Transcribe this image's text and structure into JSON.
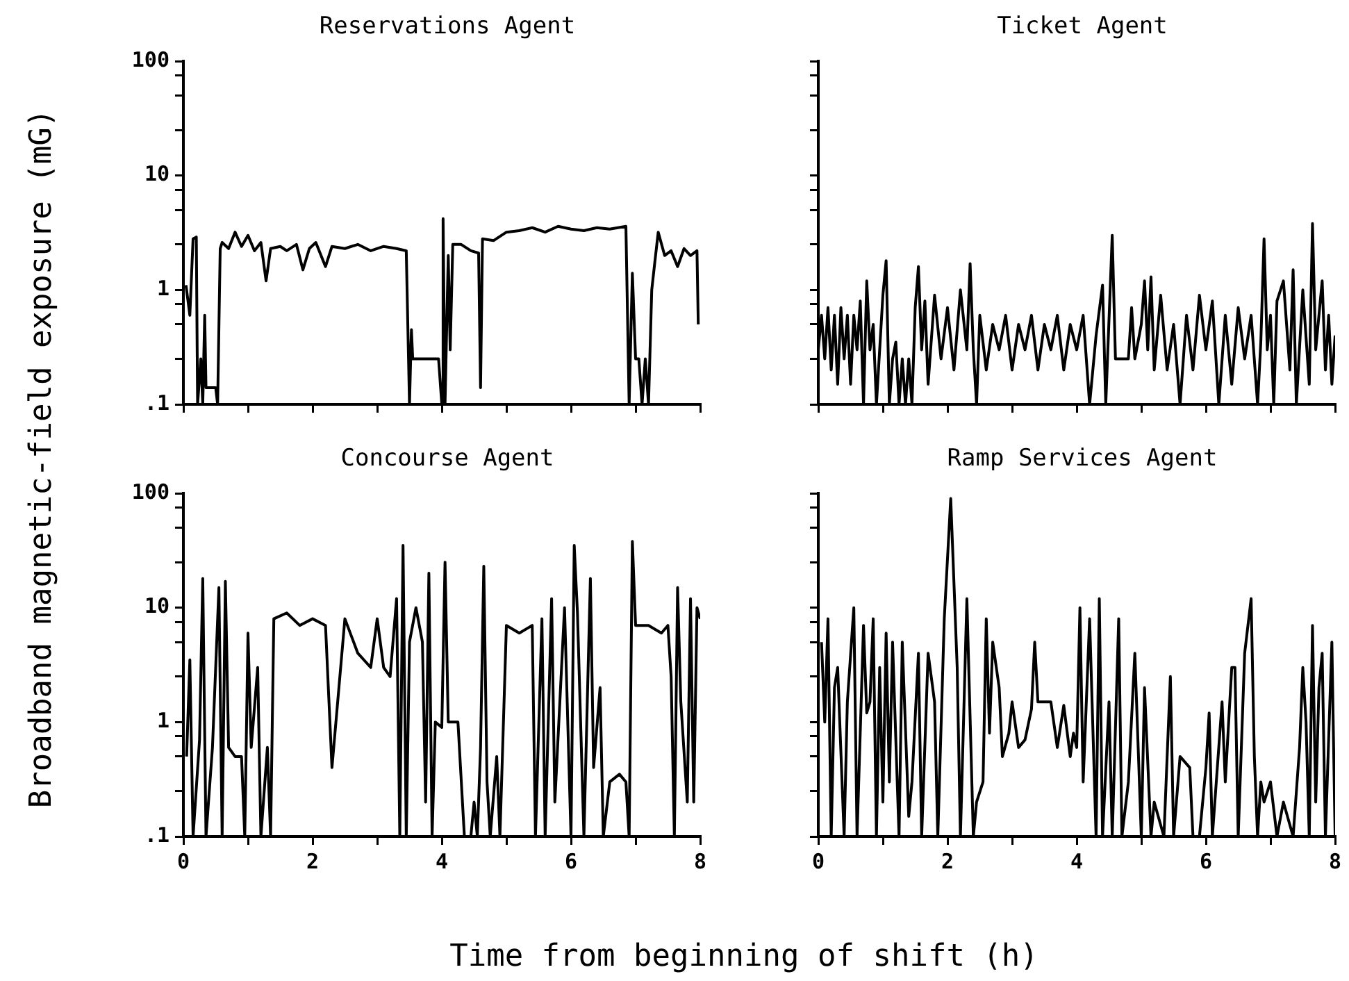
{
  "chart_data": [
    {
      "type": "line",
      "title": "Reservations Agent",
      "ylabel": "Broadband magnetic-field exposure (mG)",
      "log": "y",
      "tick_labels": "y",
      "marker": "none",
      "line_style": "solid",
      "legend": false,
      "color": "#000000",
      "xlim": [
        0,
        8
      ],
      "xticks": [
        0,
        {
          "value": 1,
          "label": null
        },
        2,
        {
          "value": 3,
          "label": null
        },
        4,
        {
          "value": 5,
          "label": null
        },
        6,
        {
          "value": 7,
          "label": null
        },
        8
      ],
      "ylim": [
        0.1,
        100
      ],
      "yticks": [
        {
          "value": 0.1,
          "label": ".1"
        },
        {
          "value": 0.25,
          "label": null
        },
        {
          "value": 0.5,
          "label": null
        },
        {
          "value": 0.75,
          "label": null
        },
        1,
        {
          "value": 2.5,
          "label": null
        },
        {
          "value": 5,
          "label": null
        },
        {
          "value": 7.5,
          "label": null
        },
        10,
        {
          "value": 25,
          "label": null
        },
        {
          "value": 50,
          "label": null
        },
        {
          "value": 75,
          "label": null
        },
        100
      ],
      "x": [
        0.04,
        0.1,
        0.15,
        0.2,
        0.22,
        0.27,
        0.3,
        0.33,
        0.35,
        0.5,
        0.53,
        0.57,
        0.6,
        0.7,
        0.8,
        0.9,
        1.0,
        1.1,
        1.2,
        1.28,
        1.35,
        1.5,
        1.6,
        1.75,
        1.85,
        1.95,
        2.05,
        2.2,
        2.3,
        2.5,
        2.7,
        2.9,
        3.1,
        3.3,
        3.45,
        3.5,
        3.53,
        3.55,
        3.95,
        4.0,
        4.02,
        4.05,
        4.1,
        4.13,
        4.17,
        4.3,
        4.45,
        4.57,
        4.6,
        4.63,
        4.8,
        5.0,
        5.2,
        5.4,
        5.6,
        5.8,
        6.0,
        6.2,
        6.4,
        6.6,
        6.85,
        6.9,
        6.95,
        7.0,
        7.05,
        7.1,
        7.15,
        7.2,
        7.25,
        7.3,
        7.35,
        7.45,
        7.55,
        7.65,
        7.75,
        7.85,
        7.95,
        7.97
      ],
      "values": [
        1.1,
        0.6,
        2.8,
        2.9,
        0.1,
        0.25,
        0.1,
        0.6,
        0.14,
        0.14,
        0.1,
        2.3,
        2.6,
        2.3,
        3.2,
        2.4,
        3.0,
        2.2,
        2.6,
        1.2,
        2.3,
        2.4,
        2.2,
        2.5,
        1.5,
        2.3,
        2.6,
        1.6,
        2.4,
        2.3,
        2.5,
        2.2,
        2.4,
        2.3,
        2.2,
        0.1,
        0.45,
        0.25,
        0.25,
        0.1,
        4.2,
        0.1,
        2.0,
        0.3,
        2.5,
        2.5,
        2.2,
        2.1,
        0.14,
        2.8,
        2.7,
        3.2,
        3.3,
        3.5,
        3.2,
        3.6,
        3.4,
        3.3,
        3.5,
        3.4,
        3.6,
        0.1,
        1.4,
        0.25,
        0.25,
        0.1,
        0.25,
        0.1,
        1.0,
        1.8,
        3.2,
        2.0,
        2.2,
        1.6,
        2.3,
        2.0,
        2.2,
        0.5
      ]
    },
    {
      "type": "line",
      "title": "Ticket Agent",
      "log": "y",
      "tick_labels": false,
      "marker": "none",
      "line_style": "solid",
      "legend": false,
      "color": "#000000",
      "xlim": [
        0,
        8
      ],
      "xticks": [
        0,
        {
          "value": 1,
          "label": null
        },
        2,
        {
          "value": 3,
          "label": null
        },
        4,
        {
          "value": 5,
          "label": null
        },
        6,
        {
          "value": 7,
          "label": null
        },
        8
      ],
      "ylim": [
        0.1,
        100
      ],
      "yticks": [
        {
          "value": 0.1,
          "label": null
        },
        {
          "value": 0.25,
          "label": null
        },
        {
          "value": 0.5,
          "label": null
        },
        {
          "value": 0.75,
          "label": null
        },
        1,
        {
          "value": 2.5,
          "label": null
        },
        {
          "value": 5,
          "label": null
        },
        {
          "value": 7.5,
          "label": null
        },
        10,
        {
          "value": 25,
          "label": null
        },
        {
          "value": 50,
          "label": null
        },
        {
          "value": 75,
          "label": null
        },
        100
      ],
      "x": [
        0,
        0.05,
        0.1,
        0.15,
        0.2,
        0.25,
        0.3,
        0.35,
        0.4,
        0.45,
        0.5,
        0.55,
        0.6,
        0.65,
        0.7,
        0.75,
        0.8,
        0.85,
        0.9,
        0.95,
        1.0,
        1.05,
        1.1,
        1.15,
        1.2,
        1.25,
        1.3,
        1.35,
        1.4,
        1.45,
        1.5,
        1.55,
        1.6,
        1.65,
        1.7,
        1.8,
        1.9,
        2.0,
        2.1,
        2.2,
        2.3,
        2.35,
        2.4,
        2.45,
        2.5,
        2.6,
        2.7,
        2.8,
        2.9,
        3.0,
        3.1,
        3.2,
        3.3,
        3.4,
        3.5,
        3.6,
        3.7,
        3.8,
        3.9,
        4.0,
        4.1,
        4.2,
        4.3,
        4.4,
        4.45,
        4.55,
        4.6,
        4.7,
        4.8,
        4.85,
        4.9,
        5.0,
        5.05,
        5.1,
        5.15,
        5.2,
        5.3,
        5.4,
        5.5,
        5.6,
        5.7,
        5.8,
        5.9,
        6.0,
        6.1,
        6.2,
        6.3,
        6.4,
        6.5,
        6.6,
        6.7,
        6.8,
        6.85,
        6.9,
        6.95,
        7.0,
        7.05,
        7.1,
        7.2,
        7.3,
        7.35,
        7.4,
        7.5,
        7.6,
        7.65,
        7.7,
        7.8,
        7.85,
        7.9,
        7.95,
        8.0
      ],
      "values": [
        0.3,
        0.6,
        0.25,
        0.7,
        0.2,
        0.6,
        0.15,
        0.7,
        0.25,
        0.6,
        0.15,
        0.6,
        0.3,
        0.8,
        0.1,
        1.2,
        0.3,
        0.5,
        0.1,
        0.3,
        0.9,
        1.8,
        0.1,
        0.25,
        0.35,
        0.1,
        0.25,
        0.1,
        0.25,
        0.1,
        0.7,
        1.6,
        0.3,
        0.8,
        0.15,
        0.9,
        0.25,
        0.7,
        0.2,
        1.0,
        0.3,
        1.7,
        0.3,
        0.1,
        0.6,
        0.2,
        0.5,
        0.3,
        0.6,
        0.2,
        0.5,
        0.3,
        0.6,
        0.2,
        0.5,
        0.3,
        0.6,
        0.2,
        0.5,
        0.3,
        0.6,
        0.1,
        0.4,
        1.1,
        0.1,
        3.0,
        0.25,
        0.25,
        0.25,
        0.7,
        0.25,
        0.5,
        1.2,
        0.3,
        1.3,
        0.2,
        0.9,
        0.2,
        0.5,
        0.1,
        0.6,
        0.2,
        0.9,
        0.3,
        0.8,
        0.1,
        0.6,
        0.15,
        0.7,
        0.25,
        0.6,
        0.1,
        0.35,
        2.8,
        0.3,
        0.6,
        0.1,
        0.8,
        1.2,
        0.2,
        1.5,
        0.1,
        1.0,
        0.15,
        3.8,
        0.3,
        1.2,
        0.2,
        0.6,
        0.15,
        0.4
      ]
    },
    {
      "type": "line",
      "title": "Concourse Agent",
      "xlabel": "Time from beginning of shift (h)",
      "log": "y",
      "marker": "none",
      "line_style": "solid",
      "legend": false,
      "color": "#000000",
      "xlim": [
        0,
        8
      ],
      "xticks": [
        0,
        {
          "value": 1,
          "label": null
        },
        2,
        {
          "value": 3,
          "label": null
        },
        4,
        {
          "value": 5,
          "label": null
        },
        6,
        {
          "value": 7,
          "label": null
        },
        8
      ],
      "ylim": [
        0.1,
        100
      ],
      "yticks": [
        {
          "value": 0.1,
          "label": ".1"
        },
        {
          "value": 0.25,
          "label": null
        },
        {
          "value": 0.5,
          "label": null
        },
        {
          "value": 0.75,
          "label": null
        },
        1,
        {
          "value": 2.5,
          "label": null
        },
        {
          "value": 5,
          "label": null
        },
        {
          "value": 7.5,
          "label": null
        },
        10,
        {
          "value": 25,
          "label": null
        },
        {
          "value": 50,
          "label": null
        },
        {
          "value": 75,
          "label": null
        },
        100
      ],
      "x": [
        0.05,
        0.1,
        0.15,
        0.25,
        0.3,
        0.35,
        0.45,
        0.55,
        0.6,
        0.65,
        0.7,
        0.8,
        0.9,
        0.95,
        1.0,
        1.05,
        1.15,
        1.2,
        1.3,
        1.35,
        1.4,
        1.6,
        1.8,
        2.0,
        2.2,
        2.3,
        2.5,
        2.7,
        2.9,
        3.0,
        3.1,
        3.2,
        3.3,
        3.35,
        3.4,
        3.45,
        3.5,
        3.6,
        3.7,
        3.75,
        3.8,
        3.85,
        3.9,
        4.0,
        4.05,
        4.1,
        4.25,
        4.35,
        4.45,
        4.5,
        4.55,
        4.6,
        4.65,
        4.7,
        4.75,
        4.85,
        4.9,
        5.0,
        5.2,
        5.4,
        5.45,
        5.55,
        5.6,
        5.7,
        5.75,
        5.9,
        6.0,
        6.05,
        6.1,
        6.2,
        6.3,
        6.35,
        6.45,
        6.5,
        6.6,
        6.75,
        6.85,
        6.9,
        6.95,
        7.0,
        7.2,
        7.4,
        7.5,
        7.55,
        7.6,
        7.65,
        7.7,
        7.8,
        7.85,
        7.9,
        7.95,
        8.0
      ],
      "values": [
        0.5,
        3.5,
        0.1,
        0.7,
        18,
        0.1,
        0.6,
        15,
        0.1,
        17,
        0.6,
        0.5,
        0.5,
        0.1,
        6,
        0.6,
        3,
        0.1,
        0.6,
        0.1,
        8,
        9,
        7,
        8,
        7,
        0.4,
        8,
        4,
        3,
        8,
        3,
        2.5,
        12,
        0.1,
        35,
        0.1,
        5,
        10,
        5,
        0.2,
        20,
        0.1,
        1,
        0.9,
        25,
        1,
        1,
        0.1,
        0.1,
        0.2,
        0.1,
        0.6,
        23,
        0.3,
        0.1,
        0.5,
        0.1,
        7,
        6,
        7,
        0.1,
        8,
        0.1,
        12,
        0.2,
        10,
        0.1,
        35,
        9,
        0.1,
        18,
        0.4,
        2,
        0.1,
        0.3,
        0.35,
        0.3,
        0.1,
        38,
        7,
        7,
        6,
        7,
        2.5,
        0.1,
        15,
        1.5,
        0.2,
        12,
        0.2,
        10,
        8
      ]
    },
    {
      "type": "line",
      "title": "Ramp Services Agent",
      "log": "y",
      "tick_labels": "x",
      "marker": "none",
      "line_style": "solid",
      "legend": false,
      "color": "#000000",
      "xlim": [
        0,
        8
      ],
      "xticks": [
        0,
        {
          "value": 1,
          "label": null
        },
        2,
        {
          "value": 3,
          "label": null
        },
        4,
        {
          "value": 5,
          "label": null
        },
        6,
        {
          "value": 7,
          "label": null
        },
        8
      ],
      "ylim": [
        0.1,
        100
      ],
      "yticks": [
        {
          "value": 0.1,
          "label": null
        },
        {
          "value": 0.25,
          "label": null
        },
        {
          "value": 0.5,
          "label": null
        },
        {
          "value": 0.75,
          "label": null
        },
        1,
        {
          "value": 2.5,
          "label": null
        },
        {
          "value": 5,
          "label": null
        },
        {
          "value": 7.5,
          "label": null
        },
        10,
        {
          "value": 25,
          "label": null
        },
        {
          "value": 50,
          "label": null
        },
        {
          "value": 75,
          "label": null
        },
        100
      ],
      "x": [
        0.05,
        0.1,
        0.15,
        0.2,
        0.25,
        0.3,
        0.4,
        0.45,
        0.55,
        0.6,
        0.7,
        0.75,
        0.8,
        0.85,
        0.9,
        0.95,
        1.0,
        1.05,
        1.1,
        1.15,
        1.25,
        1.3,
        1.4,
        1.45,
        1.55,
        1.6,
        1.7,
        1.8,
        1.85,
        1.95,
        2.05,
        2.15,
        2.2,
        2.3,
        2.4,
        2.45,
        2.55,
        2.6,
        2.65,
        2.7,
        2.8,
        2.85,
        2.95,
        3.0,
        3.1,
        3.2,
        3.3,
        3.35,
        3.4,
        3.6,
        3.7,
        3.8,
        3.9,
        3.95,
        4.0,
        4.05,
        4.1,
        4.2,
        4.3,
        4.35,
        4.4,
        4.5,
        4.55,
        4.65,
        4.7,
        4.8,
        4.9,
        5.0,
        5.05,
        5.15,
        5.2,
        5.35,
        5.45,
        5.5,
        5.6,
        5.75,
        5.8,
        5.9,
        6.0,
        6.05,
        6.1,
        6.25,
        6.3,
        6.4,
        6.45,
        6.5,
        6.6,
        6.7,
        6.75,
        6.8,
        6.85,
        6.9,
        7.0,
        7.1,
        7.2,
        7.35,
        7.45,
        7.5,
        7.55,
        7.6,
        7.65,
        7.7,
        7.75,
        7.8,
        7.85,
        7.95,
        8.0
      ],
      "values": [
        5,
        1,
        8,
        0.1,
        2,
        3,
        0.1,
        1.5,
        10,
        0.1,
        7,
        1.2,
        1.5,
        8,
        0.1,
        3,
        0.2,
        6,
        0.3,
        5,
        0.1,
        5,
        0.15,
        0.3,
        4,
        0.1,
        4,
        1.5,
        0.1,
        8,
        90,
        3,
        0.1,
        12,
        0.1,
        0.2,
        0.3,
        8,
        0.8,
        5,
        2,
        0.5,
        0.8,
        1.5,
        0.6,
        0.7,
        1.3,
        5,
        1.5,
        1.5,
        0.6,
        1.4,
        0.5,
        0.8,
        0.6,
        10,
        0.3,
        8,
        0.1,
        12,
        0.1,
        1.5,
        0.1,
        8,
        0.1,
        0.3,
        4,
        0.1,
        2,
        0.1,
        0.2,
        0.1,
        2.5,
        0.1,
        0.5,
        0.4,
        0.1,
        0.1,
        0.4,
        1.2,
        0.1,
        1.5,
        0.3,
        3,
        3,
        0.1,
        4,
        12,
        0.5,
        0.1,
        0.3,
        0.2,
        0.3,
        0.1,
        0.2,
        0.1,
        0.6,
        3,
        1,
        0.1,
        7,
        0.2,
        2,
        4,
        0.1,
        5,
        0.1
      ]
    }
  ]
}
